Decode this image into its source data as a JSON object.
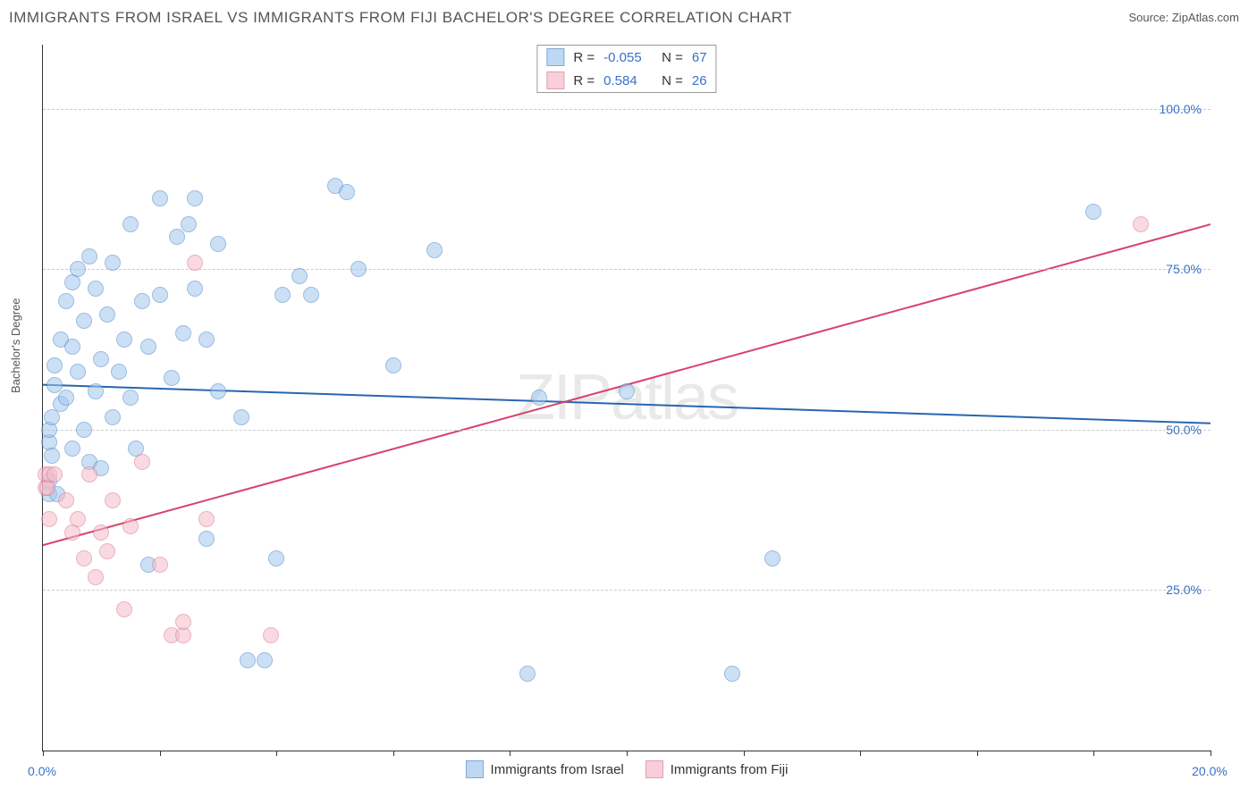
{
  "header": {
    "title": "IMMIGRANTS FROM ISRAEL VS IMMIGRANTS FROM FIJI BACHELOR'S DEGREE CORRELATION CHART",
    "source_prefix": "Source: ",
    "source_name": "ZipAtlas.com"
  },
  "chart": {
    "type": "scatter",
    "y_axis_title": "Bachelor's Degree",
    "watermark": "ZIPatlas",
    "background_color": "#ffffff",
    "grid_color": "#cccccc",
    "axis_color": "#333333",
    "xlim": [
      0,
      20
    ],
    "ylim": [
      0,
      110
    ],
    "x_ticks": [
      0,
      2,
      4,
      6,
      8,
      10,
      12,
      14,
      16,
      18,
      20
    ],
    "x_tick_labels": {
      "0": "0.0%",
      "20": "20.0%"
    },
    "y_ticks": [
      25,
      50,
      75,
      100
    ],
    "y_tick_labels": {
      "25": "25.0%",
      "50": "50.0%",
      "75": "75.0%",
      "100": "100.0%"
    },
    "marker_radius": 9,
    "marker_stroke_width": 1.2,
    "trend_line_width": 2,
    "series": [
      {
        "name": "Immigrants from Israel",
        "fill_color": "#a3c7ed",
        "stroke_color": "#4b86c6",
        "fill_opacity": 0.55,
        "trend": {
          "y_at_xmin": 57,
          "y_at_xmax": 51,
          "color": "#2965b0"
        },
        "r_label": "R = ",
        "r_value": "-0.055",
        "n_label": "N = ",
        "n_value": "67",
        "points": [
          [
            0.1,
            40
          ],
          [
            0.1,
            42
          ],
          [
            0.1,
            48
          ],
          [
            0.1,
            50
          ],
          [
            0.15,
            52
          ],
          [
            0.15,
            46
          ],
          [
            0.2,
            57
          ],
          [
            0.2,
            60
          ],
          [
            0.25,
            40
          ],
          [
            0.3,
            64
          ],
          [
            0.3,
            54
          ],
          [
            0.4,
            70
          ],
          [
            0.4,
            55
          ],
          [
            0.5,
            73
          ],
          [
            0.5,
            47
          ],
          [
            0.5,
            63
          ],
          [
            0.6,
            75
          ],
          [
            0.6,
            59
          ],
          [
            0.7,
            50
          ],
          [
            0.7,
            67
          ],
          [
            0.8,
            77
          ],
          [
            0.8,
            45
          ],
          [
            0.9,
            72
          ],
          [
            0.9,
            56
          ],
          [
            1.0,
            61
          ],
          [
            1.0,
            44
          ],
          [
            1.1,
            68
          ],
          [
            1.2,
            52
          ],
          [
            1.2,
            76
          ],
          [
            1.3,
            59
          ],
          [
            1.4,
            64
          ],
          [
            1.5,
            82
          ],
          [
            1.5,
            55
          ],
          [
            1.6,
            47
          ],
          [
            1.7,
            70
          ],
          [
            1.8,
            63
          ],
          [
            1.8,
            29
          ],
          [
            2.0,
            71
          ],
          [
            2.0,
            86
          ],
          [
            2.2,
            58
          ],
          [
            2.3,
            80
          ],
          [
            2.4,
            65
          ],
          [
            2.5,
            82
          ],
          [
            2.6,
            72
          ],
          [
            2.6,
            86
          ],
          [
            2.8,
            33
          ],
          [
            2.8,
            64
          ],
          [
            3.0,
            79
          ],
          [
            3.0,
            56
          ],
          [
            3.4,
            52
          ],
          [
            3.5,
            14
          ],
          [
            3.8,
            14
          ],
          [
            4.0,
            30
          ],
          [
            4.1,
            71
          ],
          [
            4.4,
            74
          ],
          [
            4.6,
            71
          ],
          [
            5.0,
            88
          ],
          [
            5.2,
            87
          ],
          [
            5.4,
            75
          ],
          [
            6.0,
            60
          ],
          [
            6.7,
            78
          ],
          [
            8.3,
            12
          ],
          [
            10.0,
            56
          ],
          [
            11.8,
            12
          ],
          [
            12.5,
            30
          ],
          [
            18.0,
            84
          ],
          [
            8.5,
            55
          ]
        ]
      },
      {
        "name": "Immigrants from Fiji",
        "fill_color": "#f5bcc9",
        "stroke_color": "#d9758f",
        "fill_opacity": 0.55,
        "trend": {
          "y_at_xmin": 32,
          "y_at_xmax": 82,
          "color": "#d6436b"
        },
        "r_label": "R = ",
        "r_value": "0.584",
        "n_label": "N = ",
        "n_value": "26",
        "points": [
          [
            0.05,
            41
          ],
          [
            0.05,
            43
          ],
          [
            0.08,
            41
          ],
          [
            0.1,
            36
          ],
          [
            0.1,
            43
          ],
          [
            0.2,
            43
          ],
          [
            0.4,
            39
          ],
          [
            0.5,
            34
          ],
          [
            0.6,
            36
          ],
          [
            0.7,
            30
          ],
          [
            0.8,
            43
          ],
          [
            0.9,
            27
          ],
          [
            1.0,
            34
          ],
          [
            1.1,
            31
          ],
          [
            1.2,
            39
          ],
          [
            1.4,
            22
          ],
          [
            1.5,
            35
          ],
          [
            1.7,
            45
          ],
          [
            2.0,
            29
          ],
          [
            2.2,
            18
          ],
          [
            2.4,
            18
          ],
          [
            2.4,
            20
          ],
          [
            2.6,
            76
          ],
          [
            2.8,
            36
          ],
          [
            3.9,
            18
          ],
          [
            18.8,
            82
          ]
        ]
      }
    ]
  }
}
